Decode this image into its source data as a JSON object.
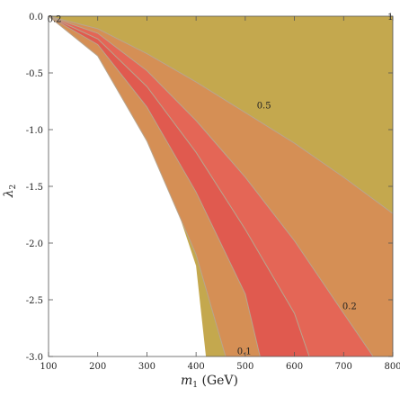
{
  "chart_data": {
    "type": "contour",
    "xlabel_main": "m",
    "xlabel_sub": "1",
    "xlabel_unit": " (GeV)",
    "ylabel_main": "λ",
    "ylabel_sub": "2",
    "xlim": [
      100,
      800
    ],
    "ylim": [
      -3.0,
      0.0
    ],
    "x_ticks": [
      100,
      200,
      300,
      400,
      500,
      600,
      700,
      800
    ],
    "y_ticks": [
      0.0,
      -0.5,
      -1.0,
      -1.5,
      -2.0,
      -2.5,
      -3.0
    ],
    "x_tick_labels": [
      "100",
      "200",
      "300",
      "400",
      "500",
      "600",
      "700",
      "800"
    ],
    "y_tick_labels": [
      "0.0",
      "-0.5",
      "-1.0",
      "-1.5",
      "-2.0",
      "-2.5",
      "-3.0"
    ],
    "colors": {
      "region_outer": "#c4a84e",
      "region_1": "#c9a24f",
      "region_2": "#d58f55",
      "region_3": "#df7a58",
      "region_4": "#e46656",
      "region_5": "#e05a4f",
      "contour_line": "#b8a58e"
    },
    "contour_labels": [
      {
        "text": "1",
        "x": 795,
        "y": 0.0
      },
      {
        "text": "0.2",
        "x": 112,
        "y": -0.02
      },
      {
        "text": "0.5",
        "x": 538,
        "y": -0.78
      },
      {
        "text": "0.2",
        "x": 712,
        "y": -2.55
      },
      {
        "text": "0.1",
        "x": 498,
        "y": -2.95
      }
    ],
    "boundaries": {
      "left_edge": [
        [
          100,
          0.0
        ],
        [
          150,
          -0.1
        ],
        [
          200,
          -0.32
        ],
        [
          250,
          -0.62
        ],
        [
          300,
          -1.0
        ],
        [
          350,
          -1.55
        ],
        [
          400,
          -2.2
        ],
        [
          420,
          -3.0
        ]
      ],
      "band_1": [
        [
          100,
          0.0
        ],
        [
          200,
          -0.35
        ],
        [
          300,
          -1.1
        ],
        [
          400,
          -2.1
        ],
        [
          460,
          -3.0
        ]
      ],
      "band_2": [
        [
          100,
          0.0
        ],
        [
          200,
          -0.25
        ],
        [
          300,
          -0.8
        ],
        [
          400,
          -1.55
        ],
        [
          500,
          -2.45
        ],
        [
          530,
          -3.0
        ]
      ],
      "band_3": [
        [
          100,
          0.0
        ],
        [
          200,
          -0.2
        ],
        [
          300,
          -0.62
        ],
        [
          400,
          -1.2
        ],
        [
          500,
          -1.88
        ],
        [
          600,
          -2.62
        ],
        [
          630,
          -3.0
        ]
      ],
      "band_4": [
        [
          100,
          0.0
        ],
        [
          200,
          -0.15
        ],
        [
          300,
          -0.48
        ],
        [
          400,
          -0.92
        ],
        [
          500,
          -1.42
        ],
        [
          600,
          -1.98
        ],
        [
          700,
          -2.62
        ],
        [
          760,
          -3.0
        ]
      ],
      "band_5": [
        [
          100,
          0.0
        ],
        [
          200,
          -0.11
        ],
        [
          300,
          -0.33
        ],
        [
          400,
          -0.58
        ],
        [
          500,
          -0.85
        ],
        [
          600,
          -1.12
        ],
        [
          700,
          -1.42
        ],
        [
          800,
          -1.74
        ]
      ]
    }
  }
}
